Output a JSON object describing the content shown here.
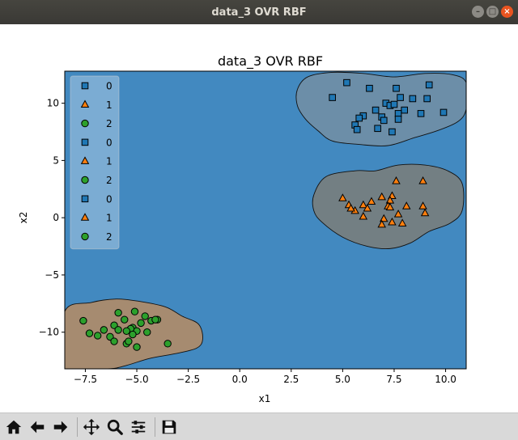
{
  "window": {
    "title": "data_3 OVR RBF"
  },
  "toolbar": {
    "buttons": [
      {
        "name": "home-button",
        "icon": "home-icon"
      },
      {
        "name": "back-button",
        "icon": "arrow-left-icon"
      },
      {
        "name": "forward-button",
        "icon": "arrow-right-icon"
      },
      {
        "name": "pan-button",
        "icon": "move-icon"
      },
      {
        "name": "zoom-button",
        "icon": "magnifier-icon"
      },
      {
        "name": "configure-subplots-button",
        "icon": "sliders-icon"
      },
      {
        "name": "save-button",
        "icon": "floppy-disk-icon"
      }
    ]
  },
  "chart_data": {
    "type": "scatter",
    "title": "data_3 OVR RBF",
    "xlabel": "x1",
    "ylabel": "x2",
    "xlim": [
      -8.5,
      11
    ],
    "ylim": [
      -13.2,
      12.8
    ],
    "xticks": [
      -7.5,
      -5.0,
      -2.5,
      0.0,
      2.5,
      5.0,
      7.5,
      10.0
    ],
    "xtick_labels": [
      "−7.5",
      "−5.0",
      "−2.5",
      "0.0",
      "2.5",
      "5.0",
      "7.5",
      "10.0"
    ],
    "yticks": [
      -10,
      -5,
      0,
      5,
      10
    ],
    "ytick_labels": [
      "−10",
      "−5",
      "0",
      "5",
      "10"
    ],
    "background_color": "#4289c0",
    "legend": {
      "placement": "upper-left",
      "entries": [
        {
          "label": "0",
          "marker": "square",
          "color": "#1f77b4"
        },
        {
          "label": "1",
          "marker": "triangle",
          "color": "#ff7f0e"
        },
        {
          "label": "2",
          "marker": "circle",
          "color": "#2ca02c"
        },
        {
          "label": "0",
          "marker": "square",
          "color": "#1f77b4"
        },
        {
          "label": "1",
          "marker": "triangle",
          "color": "#ff7f0e"
        },
        {
          "label": "2",
          "marker": "circle",
          "color": "#2ca02c"
        },
        {
          "label": "0",
          "marker": "square",
          "color": "#1f77b4"
        },
        {
          "label": "1",
          "marker": "triangle",
          "color": "#ff7f0e"
        },
        {
          "label": "2",
          "marker": "circle",
          "color": "#2ca02c"
        }
      ]
    },
    "regions": [
      {
        "class": "0",
        "color": "#6c8ea8",
        "outline": [
          [
            2.8,
            11.2
          ],
          [
            3.3,
            12.3
          ],
          [
            4.5,
            12.7
          ],
          [
            6.0,
            12.6
          ],
          [
            7.5,
            12.3
          ],
          [
            9.0,
            12.6
          ],
          [
            10.3,
            12.5
          ],
          [
            11.0,
            11.8
          ],
          [
            11.0,
            9.5
          ],
          [
            10.6,
            8.4
          ],
          [
            9.6,
            7.6
          ],
          [
            8.5,
            7.0
          ],
          [
            7.2,
            6.3
          ],
          [
            5.8,
            6.4
          ],
          [
            4.5,
            6.7
          ],
          [
            3.8,
            7.6
          ],
          [
            3.2,
            8.6
          ],
          [
            2.8,
            9.8
          ]
        ]
      },
      {
        "class": "1",
        "color": "#737f83",
        "outline": [
          [
            3.6,
            2.0
          ],
          [
            4.2,
            3.6
          ],
          [
            5.6,
            4.1
          ],
          [
            6.6,
            4.1
          ],
          [
            7.7,
            4.6
          ],
          [
            9.0,
            4.6
          ],
          [
            10.1,
            4.1
          ],
          [
            10.8,
            3.0
          ],
          [
            10.8,
            0.6
          ],
          [
            10.2,
            -0.5
          ],
          [
            9.2,
            -1.2
          ],
          [
            8.3,
            -2.2
          ],
          [
            7.3,
            -2.7
          ],
          [
            6.2,
            -2.5
          ],
          [
            5.0,
            -1.7
          ],
          [
            4.0,
            -0.4
          ],
          [
            3.6,
            0.6
          ]
        ]
      },
      {
        "class": "2",
        "color": "#a68b70",
        "outline": [
          [
            -8.5,
            -8.2
          ],
          [
            -7.2,
            -7.4
          ],
          [
            -6.0,
            -7.1
          ],
          [
            -4.9,
            -7.3
          ],
          [
            -3.6,
            -7.8
          ],
          [
            -2.8,
            -8.6
          ],
          [
            -2.0,
            -9.3
          ],
          [
            -1.8,
            -10.6
          ],
          [
            -2.1,
            -11.4
          ],
          [
            -3.2,
            -11.9
          ],
          [
            -4.4,
            -12.3
          ],
          [
            -5.5,
            -12.9
          ],
          [
            -6.4,
            -13.2
          ],
          [
            -8.5,
            -13.2
          ]
        ]
      }
    ],
    "series": [
      {
        "name": "0",
        "marker": "square",
        "color": "#1f77b4",
        "x": [
          5.2,
          6.3,
          7.6,
          9.2,
          4.5,
          7.1,
          7.8,
          8.4,
          9.1,
          7.3,
          7.5,
          6.6,
          8.0,
          6.9,
          7.7,
          6.0,
          5.8,
          8.8,
          9.9,
          7.0,
          7.7,
          5.6,
          5.7,
          6.7,
          7.4
        ],
        "y": [
          11.8,
          11.3,
          11.3,
          11.6,
          10.5,
          10.0,
          10.5,
          10.4,
          10.4,
          9.8,
          9.9,
          9.4,
          9.4,
          8.8,
          9.1,
          8.9,
          8.7,
          9.1,
          9.2,
          8.5,
          8.6,
          8.1,
          7.7,
          7.8,
          7.5
        ]
      },
      {
        "name": "1",
        "marker": "triangle",
        "color": "#ff7f0e",
        "x": [
          7.6,
          8.9,
          6.9,
          5.0,
          7.4,
          6.4,
          5.3,
          5.6,
          6.0,
          6.2,
          7.3,
          7.2,
          8.1,
          8.9,
          7.3,
          7.7,
          5.4,
          6.0,
          9.0,
          7.0,
          7.4,
          6.9,
          7.9
        ],
        "y": [
          3.2,
          3.2,
          1.8,
          1.7,
          1.9,
          1.4,
          1.1,
          0.6,
          1.1,
          0.8,
          1.5,
          1.0,
          1.0,
          1.0,
          0.9,
          0.3,
          0.8,
          0.1,
          0.4,
          -0.1,
          -0.4,
          -0.6,
          -0.5
        ]
      },
      {
        "name": "2",
        "marker": "circle",
        "color": "#2ca02c",
        "x": [
          -5.1,
          -5.9,
          -7.6,
          -5.6,
          -4.6,
          -4.8,
          -6.1,
          -5.2,
          -4.0,
          -4.3,
          -5.9,
          -6.6,
          -5.0,
          -5.3,
          -5.5,
          -7.3,
          -4.5,
          -5.2,
          -6.9,
          -6.3,
          -3.5,
          -6.1,
          -5.5,
          -5.4,
          -5.0,
          -4.1
        ],
        "y": [
          -8.2,
          -8.3,
          -9.0,
          -8.9,
          -8.6,
          -9.2,
          -9.4,
          -9.6,
          -8.9,
          -9.0,
          -9.8,
          -9.8,
          -9.9,
          -9.7,
          -9.9,
          -10.1,
          -10.0,
          -10.2,
          -10.3,
          -10.4,
          -11.0,
          -10.8,
          -11.0,
          -10.8,
          -11.3,
          -8.9
        ]
      }
    ]
  }
}
